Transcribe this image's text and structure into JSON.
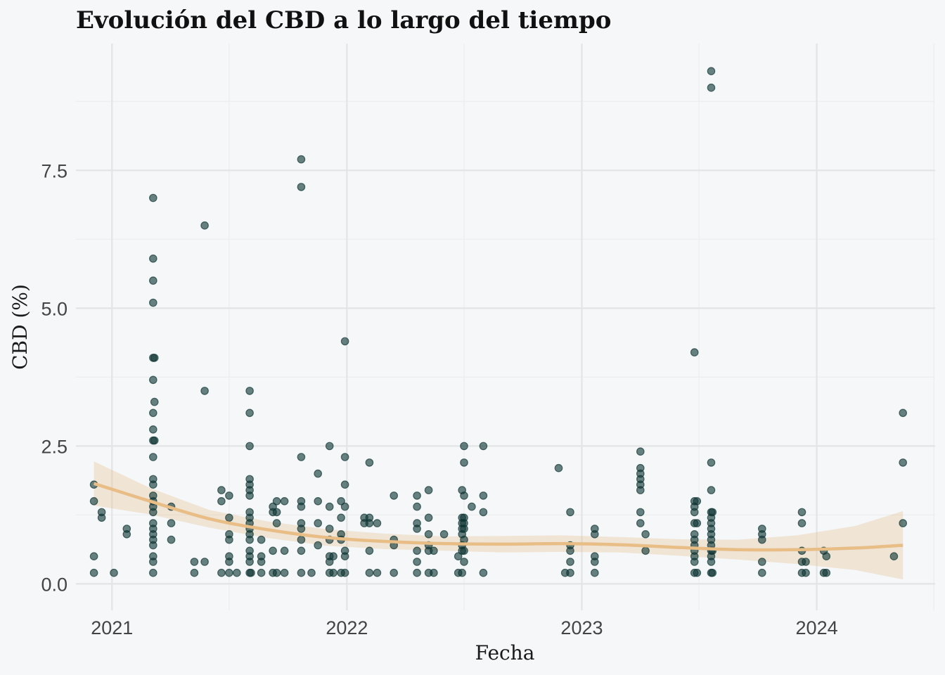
{
  "chart_data": {
    "type": "scatter",
    "title": "Evolución del CBD a lo largo del tiempo",
    "xlabel": "Fecha",
    "ylabel": "CBD (%)",
    "xlim": [
      "2020-11-06",
      "2024-07-03"
    ],
    "ylim": [
      -0.48,
      9.8
    ],
    "x_ticks": [
      {
        "date": "2021-01-01",
        "label": "2021"
      },
      {
        "date": "2022-01-01",
        "label": "2022"
      },
      {
        "date": "2023-01-01",
        "label": "2023"
      },
      {
        "date": "2024-01-01",
        "label": "2024"
      }
    ],
    "x_minor": [
      "2021-07-02",
      "2022-07-02",
      "2023-07-02",
      "2024-07-01"
    ],
    "y_ticks": [
      {
        "value": 0,
        "label": "0.0"
      },
      {
        "value": 2.5,
        "label": "2.5"
      },
      {
        "value": 5,
        "label": "5.0"
      },
      {
        "value": 7.5,
        "label": "7.5"
      }
    ],
    "y_minor": [
      1.25,
      3.75,
      6.25,
      8.75
    ],
    "grid": true,
    "legend": "none",
    "point_color": "#0e3533",
    "smooth_color": "#e8bd86",
    "points": [
      {
        "x": "2020-12-04",
        "y": 1.8
      },
      {
        "x": "2020-12-04",
        "y": 1.5
      },
      {
        "x": "2020-12-04",
        "y": 0.5
      },
      {
        "x": "2020-12-04",
        "y": 0.2
      },
      {
        "x": "2020-12-16",
        "y": 1.3
      },
      {
        "x": "2020-12-16",
        "y": 1.2
      },
      {
        "x": "2021-01-04",
        "y": 0.2
      },
      {
        "x": "2021-01-24",
        "y": 1.0
      },
      {
        "x": "2021-01-24",
        "y": 0.9
      },
      {
        "x": "2021-03-06",
        "y": 7.0
      },
      {
        "x": "2021-03-06",
        "y": 5.9
      },
      {
        "x": "2021-03-06",
        "y": 5.5
      },
      {
        "x": "2021-03-06",
        "y": 5.1
      },
      {
        "x": "2021-03-06",
        "y": 4.1
      },
      {
        "x": "2021-03-06",
        "y": 3.7
      },
      {
        "x": "2021-03-06",
        "y": 3.1
      },
      {
        "x": "2021-03-06",
        "y": 2.8
      },
      {
        "x": "2021-03-06",
        "y": 2.6
      },
      {
        "x": "2021-03-06",
        "y": 2.3
      },
      {
        "x": "2021-03-06",
        "y": 1.9
      },
      {
        "x": "2021-03-06",
        "y": 1.8
      },
      {
        "x": "2021-03-06",
        "y": 1.6
      },
      {
        "x": "2021-03-06",
        "y": 1.5
      },
      {
        "x": "2021-03-06",
        "y": 1.4
      },
      {
        "x": "2021-03-06",
        "y": 1.3
      },
      {
        "x": "2021-03-06",
        "y": 1.1
      },
      {
        "x": "2021-03-06",
        "y": 1.0
      },
      {
        "x": "2021-03-06",
        "y": 0.9
      },
      {
        "x": "2021-03-06",
        "y": 0.8
      },
      {
        "x": "2021-03-06",
        "y": 0.7
      },
      {
        "x": "2021-03-06",
        "y": 0.5
      },
      {
        "x": "2021-03-06",
        "y": 0.4
      },
      {
        "x": "2021-03-06",
        "y": 0.2
      },
      {
        "x": "2021-03-08",
        "y": 4.1
      },
      {
        "x": "2021-03-08",
        "y": 3.3
      },
      {
        "x": "2021-03-08",
        "y": 2.6
      },
      {
        "x": "2021-04-03",
        "y": 1.4
      },
      {
        "x": "2021-04-03",
        "y": 1.1
      },
      {
        "x": "2021-04-03",
        "y": 0.8
      },
      {
        "x": "2021-05-09",
        "y": 0.4
      },
      {
        "x": "2021-05-09",
        "y": 0.2
      },
      {
        "x": "2021-05-25",
        "y": 6.5
      },
      {
        "x": "2021-05-25",
        "y": 3.5
      },
      {
        "x": "2021-05-25",
        "y": 0.4
      },
      {
        "x": "2021-06-20",
        "y": 1.7
      },
      {
        "x": "2021-06-20",
        "y": 1.5
      },
      {
        "x": "2021-06-20",
        "y": 0.2
      },
      {
        "x": "2021-07-02",
        "y": 1.6
      },
      {
        "x": "2021-07-02",
        "y": 1.2
      },
      {
        "x": "2021-07-02",
        "y": 0.9
      },
      {
        "x": "2021-07-02",
        "y": 0.8
      },
      {
        "x": "2021-07-02",
        "y": 0.5
      },
      {
        "x": "2021-07-02",
        "y": 0.4
      },
      {
        "x": "2021-07-02",
        "y": 0.2
      },
      {
        "x": "2021-07-14",
        "y": 0.2
      },
      {
        "x": "2021-08-03",
        "y": 3.5
      },
      {
        "x": "2021-08-03",
        "y": 3.1
      },
      {
        "x": "2021-08-03",
        "y": 2.5
      },
      {
        "x": "2021-08-03",
        "y": 1.9
      },
      {
        "x": "2021-08-03",
        "y": 1.8
      },
      {
        "x": "2021-08-03",
        "y": 1.7
      },
      {
        "x": "2021-08-03",
        "y": 1.6
      },
      {
        "x": "2021-08-03",
        "y": 1.3
      },
      {
        "x": "2021-08-03",
        "y": 1.2
      },
      {
        "x": "2021-08-03",
        "y": 1.1
      },
      {
        "x": "2021-08-03",
        "y": 1.0
      },
      {
        "x": "2021-08-03",
        "y": 0.9
      },
      {
        "x": "2021-08-03",
        "y": 0.8
      },
      {
        "x": "2021-08-03",
        "y": 0.6
      },
      {
        "x": "2021-08-03",
        "y": 0.5
      },
      {
        "x": "2021-08-03",
        "y": 0.4
      },
      {
        "x": "2021-08-03",
        "y": 0.2
      },
      {
        "x": "2021-08-05",
        "y": 0.2
      },
      {
        "x": "2021-08-21",
        "y": 0.8
      },
      {
        "x": "2021-08-21",
        "y": 0.5
      },
      {
        "x": "2021-08-21",
        "y": 0.4
      },
      {
        "x": "2021-08-21",
        "y": 0.2
      },
      {
        "x": "2021-09-08",
        "y": 1.4
      },
      {
        "x": "2021-09-08",
        "y": 1.3
      },
      {
        "x": "2021-09-08",
        "y": 0.6
      },
      {
        "x": "2021-09-08",
        "y": 0.2
      },
      {
        "x": "2021-09-14",
        "y": 1.5
      },
      {
        "x": "2021-09-14",
        "y": 1.3
      },
      {
        "x": "2021-09-14",
        "y": 1.1
      },
      {
        "x": "2021-09-14",
        "y": 0.2
      },
      {
        "x": "2021-09-26",
        "y": 1.5
      },
      {
        "x": "2021-09-26",
        "y": 0.6
      },
      {
        "x": "2021-09-26",
        "y": 0.2
      },
      {
        "x": "2021-10-22",
        "y": 7.7
      },
      {
        "x": "2021-10-22",
        "y": 7.2
      },
      {
        "x": "2021-10-22",
        "y": 2.3
      },
      {
        "x": "2021-10-22",
        "y": 1.5
      },
      {
        "x": "2021-10-22",
        "y": 1.4
      },
      {
        "x": "2021-10-22",
        "y": 1.1
      },
      {
        "x": "2021-10-22",
        "y": 1.0
      },
      {
        "x": "2021-10-22",
        "y": 0.8
      },
      {
        "x": "2021-10-22",
        "y": 0.6
      },
      {
        "x": "2021-10-22",
        "y": 0.2
      },
      {
        "x": "2021-11-07",
        "y": 0.2
      },
      {
        "x": "2021-11-17",
        "y": 2.0
      },
      {
        "x": "2021-11-17",
        "y": 1.5
      },
      {
        "x": "2021-11-17",
        "y": 1.1
      },
      {
        "x": "2021-11-17",
        "y": 0.7
      },
      {
        "x": "2021-12-05",
        "y": 2.5
      },
      {
        "x": "2021-12-05",
        "y": 1.4
      },
      {
        "x": "2021-12-05",
        "y": 1.0
      },
      {
        "x": "2021-12-05",
        "y": 0.8
      },
      {
        "x": "2021-12-05",
        "y": 0.5
      },
      {
        "x": "2021-12-05",
        "y": 0.4
      },
      {
        "x": "2021-12-05",
        "y": 0.2
      },
      {
        "x": "2021-12-11",
        "y": 0.5
      },
      {
        "x": "2021-12-11",
        "y": 0.2
      },
      {
        "x": "2021-12-23",
        "y": 1.5
      },
      {
        "x": "2021-12-23",
        "y": 1.2
      },
      {
        "x": "2021-12-23",
        "y": 0.9
      },
      {
        "x": "2021-12-23",
        "y": 0.8
      },
      {
        "x": "2021-12-23",
        "y": 0.2
      },
      {
        "x": "2021-12-29",
        "y": 4.4
      },
      {
        "x": "2021-12-29",
        "y": 2.3
      },
      {
        "x": "2021-12-29",
        "y": 1.8
      },
      {
        "x": "2021-12-29",
        "y": 1.4
      },
      {
        "x": "2021-12-29",
        "y": 0.6
      },
      {
        "x": "2021-12-29",
        "y": 0.5
      },
      {
        "x": "2021-12-29",
        "y": 0.2
      },
      {
        "x": "2022-01-28",
        "y": 1.2
      },
      {
        "x": "2022-01-28",
        "y": 1.1
      },
      {
        "x": "2022-02-05",
        "y": 2.2
      },
      {
        "x": "2022-02-05",
        "y": 1.2
      },
      {
        "x": "2022-02-05",
        "y": 1.1
      },
      {
        "x": "2022-02-05",
        "y": 0.6
      },
      {
        "x": "2022-02-05",
        "y": 0.2
      },
      {
        "x": "2022-02-17",
        "y": 1.1
      },
      {
        "x": "2022-02-17",
        "y": 0.2
      },
      {
        "x": "2022-03-15",
        "y": 1.6
      },
      {
        "x": "2022-03-15",
        "y": 0.8
      },
      {
        "x": "2022-03-15",
        "y": 0.7
      },
      {
        "x": "2022-03-15",
        "y": 0.2
      },
      {
        "x": "2022-04-20",
        "y": 1.6
      },
      {
        "x": "2022-04-20",
        "y": 1.4
      },
      {
        "x": "2022-04-20",
        "y": 1.1
      },
      {
        "x": "2022-04-20",
        "y": 1.0
      },
      {
        "x": "2022-04-20",
        "y": 0.6
      },
      {
        "x": "2022-04-20",
        "y": 0.4
      },
      {
        "x": "2022-04-20",
        "y": 0.2
      },
      {
        "x": "2022-05-08",
        "y": 1.7
      },
      {
        "x": "2022-05-08",
        "y": 1.2
      },
      {
        "x": "2022-05-08",
        "y": 0.9
      },
      {
        "x": "2022-05-08",
        "y": 0.7
      },
      {
        "x": "2022-05-08",
        "y": 0.6
      },
      {
        "x": "2022-05-08",
        "y": 0.2
      },
      {
        "x": "2022-05-16",
        "y": 0.6
      },
      {
        "x": "2022-05-16",
        "y": 0.2
      },
      {
        "x": "2022-06-01",
        "y": 0.9
      },
      {
        "x": "2022-06-23",
        "y": 0.5
      },
      {
        "x": "2022-06-23",
        "y": 0.2
      },
      {
        "x": "2022-06-29",
        "y": 1.7
      },
      {
        "x": "2022-06-29",
        "y": 1.2
      },
      {
        "x": "2022-06-29",
        "y": 1.1
      },
      {
        "x": "2022-06-29",
        "y": 1.0
      },
      {
        "x": "2022-06-29",
        "y": 0.9
      },
      {
        "x": "2022-06-29",
        "y": 0.7
      },
      {
        "x": "2022-06-29",
        "y": 0.6
      },
      {
        "x": "2022-06-29",
        "y": 0.2
      },
      {
        "x": "2022-07-02",
        "y": 2.5
      },
      {
        "x": "2022-07-02",
        "y": 2.2
      },
      {
        "x": "2022-07-02",
        "y": 1.6
      },
      {
        "x": "2022-07-02",
        "y": 1.2
      },
      {
        "x": "2022-07-02",
        "y": 1.1
      },
      {
        "x": "2022-07-02",
        "y": 1.0
      },
      {
        "x": "2022-07-02",
        "y": 0.8
      },
      {
        "x": "2022-07-02",
        "y": 0.6
      },
      {
        "x": "2022-07-02",
        "y": 0.4
      },
      {
        "x": "2022-07-14",
        "y": 1.4
      },
      {
        "x": "2022-08-01",
        "y": 2.5
      },
      {
        "x": "2022-08-01",
        "y": 1.6
      },
      {
        "x": "2022-08-01",
        "y": 1.3
      },
      {
        "x": "2022-08-01",
        "y": 0.2
      },
      {
        "x": "2022-11-26",
        "y": 2.1
      },
      {
        "x": "2022-12-06",
        "y": 0.2
      },
      {
        "x": "2022-12-14",
        "y": 1.3
      },
      {
        "x": "2022-12-14",
        "y": 0.7
      },
      {
        "x": "2022-12-14",
        "y": 0.6
      },
      {
        "x": "2022-12-14",
        "y": 0.4
      },
      {
        "x": "2022-12-14",
        "y": 0.2
      },
      {
        "x": "2023-01-21",
        "y": 1.0
      },
      {
        "x": "2023-01-21",
        "y": 0.9
      },
      {
        "x": "2023-01-21",
        "y": 0.5
      },
      {
        "x": "2023-01-21",
        "y": 0.4
      },
      {
        "x": "2023-01-21",
        "y": 0.2
      },
      {
        "x": "2023-04-02",
        "y": 2.4
      },
      {
        "x": "2023-04-02",
        "y": 2.1
      },
      {
        "x": "2023-04-02",
        "y": 2.0
      },
      {
        "x": "2023-04-02",
        "y": 1.9
      },
      {
        "x": "2023-04-02",
        "y": 1.8
      },
      {
        "x": "2023-04-02",
        "y": 1.7
      },
      {
        "x": "2023-04-02",
        "y": 1.3
      },
      {
        "x": "2023-04-02",
        "y": 1.1
      },
      {
        "x": "2023-04-10",
        "y": 0.9
      },
      {
        "x": "2023-04-10",
        "y": 0.6
      },
      {
        "x": "2023-06-25",
        "y": 4.2
      },
      {
        "x": "2023-06-25",
        "y": 1.5
      },
      {
        "x": "2023-06-25",
        "y": 1.4
      },
      {
        "x": "2023-06-25",
        "y": 1.3
      },
      {
        "x": "2023-06-25",
        "y": 1.1
      },
      {
        "x": "2023-06-25",
        "y": 0.9
      },
      {
        "x": "2023-06-25",
        "y": 0.8
      },
      {
        "x": "2023-06-25",
        "y": 0.7
      },
      {
        "x": "2023-06-25",
        "y": 0.6
      },
      {
        "x": "2023-06-25",
        "y": 0.5
      },
      {
        "x": "2023-06-25",
        "y": 0.4
      },
      {
        "x": "2023-06-25",
        "y": 0.2
      },
      {
        "x": "2023-06-29",
        "y": 1.5
      },
      {
        "x": "2023-06-29",
        "y": 1.1
      },
      {
        "x": "2023-06-29",
        "y": 0.2
      },
      {
        "x": "2023-07-21",
        "y": 9.3
      },
      {
        "x": "2023-07-21",
        "y": 9.0
      },
      {
        "x": "2023-07-21",
        "y": 2.2
      },
      {
        "x": "2023-07-21",
        "y": 1.7
      },
      {
        "x": "2023-07-21",
        "y": 1.3
      },
      {
        "x": "2023-07-21",
        "y": 1.2
      },
      {
        "x": "2023-07-21",
        "y": 1.1
      },
      {
        "x": "2023-07-21",
        "y": 1.0
      },
      {
        "x": "2023-07-21",
        "y": 0.9
      },
      {
        "x": "2023-07-21",
        "y": 0.8
      },
      {
        "x": "2023-07-21",
        "y": 0.7
      },
      {
        "x": "2023-07-21",
        "y": 0.6
      },
      {
        "x": "2023-07-21",
        "y": 0.5
      },
      {
        "x": "2023-07-21",
        "y": 0.4
      },
      {
        "x": "2023-07-21",
        "y": 0.2
      },
      {
        "x": "2023-07-23",
        "y": 1.3
      },
      {
        "x": "2023-07-23",
        "y": 0.6
      },
      {
        "x": "2023-07-23",
        "y": 0.2
      },
      {
        "x": "2023-10-08",
        "y": 1.0
      },
      {
        "x": "2023-10-08",
        "y": 0.9
      },
      {
        "x": "2023-10-08",
        "y": 0.8
      },
      {
        "x": "2023-10-08",
        "y": 0.4
      },
      {
        "x": "2023-10-08",
        "y": 0.2
      },
      {
        "x": "2023-12-09",
        "y": 1.3
      },
      {
        "x": "2023-12-09",
        "y": 1.1
      },
      {
        "x": "2023-12-09",
        "y": 0.6
      },
      {
        "x": "2023-12-09",
        "y": 0.4
      },
      {
        "x": "2023-12-09",
        "y": 0.2
      },
      {
        "x": "2023-12-15",
        "y": 0.4
      },
      {
        "x": "2023-12-15",
        "y": 0.2
      },
      {
        "x": "2024-01-12",
        "y": 0.6
      },
      {
        "x": "2024-01-12",
        "y": 0.2
      },
      {
        "x": "2024-01-16",
        "y": 0.5
      },
      {
        "x": "2024-01-16",
        "y": 0.2
      },
      {
        "x": "2024-04-30",
        "y": 0.5
      },
      {
        "x": "2024-05-14",
        "y": 3.1
      },
      {
        "x": "2024-05-14",
        "y": 2.2
      },
      {
        "x": "2024-05-14",
        "y": 1.1
      }
    ],
    "smooth": {
      "method": "loess",
      "fit": [
        {
          "x": "2020-12-04",
          "y": 1.82
        },
        {
          "x": "2021-03-01",
          "y": 1.5
        },
        {
          "x": "2021-06-01",
          "y": 1.18
        },
        {
          "x": "2021-09-01",
          "y": 0.98
        },
        {
          "x": "2021-12-01",
          "y": 0.84
        },
        {
          "x": "2022-03-01",
          "y": 0.77
        },
        {
          "x": "2022-06-01",
          "y": 0.73
        },
        {
          "x": "2022-09-01",
          "y": 0.72
        },
        {
          "x": "2022-12-01",
          "y": 0.73
        },
        {
          "x": "2023-03-01",
          "y": 0.71
        },
        {
          "x": "2023-06-01",
          "y": 0.66
        },
        {
          "x": "2023-09-01",
          "y": 0.62
        },
        {
          "x": "2023-12-01",
          "y": 0.62
        },
        {
          "x": "2024-03-01",
          "y": 0.65
        },
        {
          "x": "2024-05-14",
          "y": 0.7
        }
      ],
      "upper": [
        {
          "x": "2020-12-04",
          "y": 2.22
        },
        {
          "x": "2021-03-01",
          "y": 1.74
        },
        {
          "x": "2021-06-01",
          "y": 1.34
        },
        {
          "x": "2021-09-01",
          "y": 1.13
        },
        {
          "x": "2021-12-01",
          "y": 0.99
        },
        {
          "x": "2022-03-01",
          "y": 0.91
        },
        {
          "x": "2022-06-01",
          "y": 0.86
        },
        {
          "x": "2022-09-01",
          "y": 0.87
        },
        {
          "x": "2022-12-01",
          "y": 0.88
        },
        {
          "x": "2023-03-01",
          "y": 0.85
        },
        {
          "x": "2023-06-01",
          "y": 0.81
        },
        {
          "x": "2023-09-01",
          "y": 0.8
        },
        {
          "x": "2023-12-01",
          "y": 0.88
        },
        {
          "x": "2024-03-01",
          "y": 1.05
        },
        {
          "x": "2024-05-14",
          "y": 1.32
        }
      ],
      "lower": [
        {
          "x": "2020-12-04",
          "y": 1.42
        },
        {
          "x": "2021-03-01",
          "y": 1.26
        },
        {
          "x": "2021-06-01",
          "y": 1.02
        },
        {
          "x": "2021-09-01",
          "y": 0.83
        },
        {
          "x": "2021-12-01",
          "y": 0.69
        },
        {
          "x": "2022-03-01",
          "y": 0.63
        },
        {
          "x": "2022-06-01",
          "y": 0.6
        },
        {
          "x": "2022-09-01",
          "y": 0.57
        },
        {
          "x": "2022-12-01",
          "y": 0.58
        },
        {
          "x": "2023-03-01",
          "y": 0.57
        },
        {
          "x": "2023-06-01",
          "y": 0.51
        },
        {
          "x": "2023-09-01",
          "y": 0.44
        },
        {
          "x": "2023-12-01",
          "y": 0.36
        },
        {
          "x": "2024-03-01",
          "y": 0.25
        },
        {
          "x": "2024-05-14",
          "y": 0.08
        }
      ]
    }
  }
}
